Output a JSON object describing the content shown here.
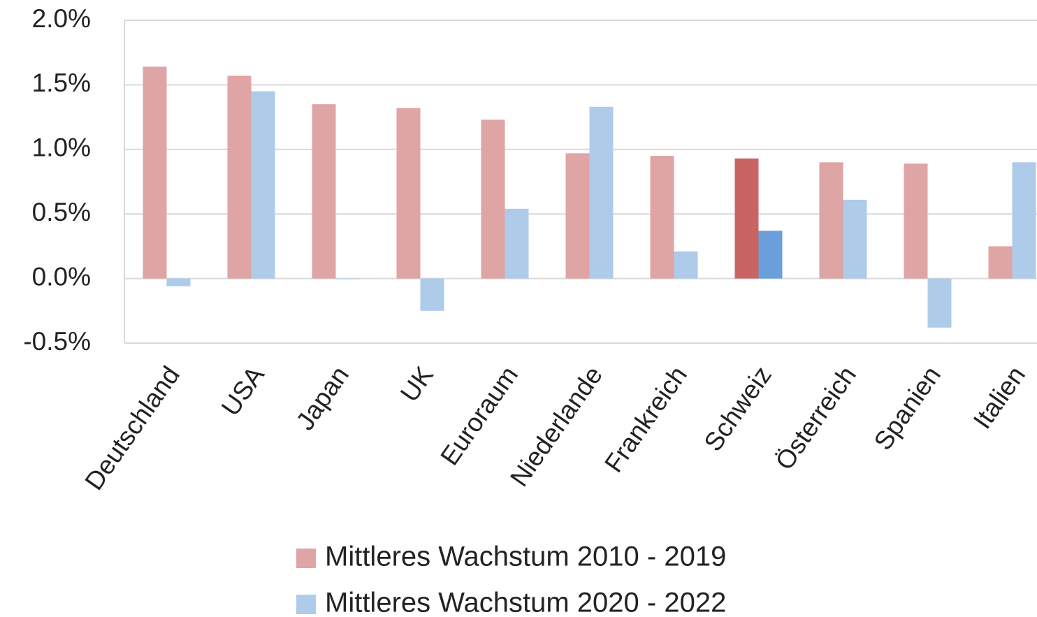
{
  "chart_data": {
    "type": "bar",
    "categories": [
      "Deutschland",
      "USA",
      "Japan",
      "UK",
      "Euroraum",
      "Niederlande",
      "Frankreich",
      "Schweiz",
      "Österreich",
      "Spanien",
      "Italien"
    ],
    "series": [
      {
        "name": "Mittleres Wachstum 2010 - 2019",
        "color": "#dfa5a5",
        "colors": [
          "#dfa5a5",
          "#dfa5a5",
          "#dfa5a5",
          "#dfa5a5",
          "#dfa5a5",
          "#dfa5a5",
          "#dfa5a5",
          "#c86563",
          "#dfa5a5",
          "#dfa5a5",
          "#dfa5a5"
        ],
        "values": [
          1.64,
          1.57,
          1.35,
          1.32,
          1.23,
          0.97,
          0.95,
          0.93,
          0.9,
          0.89,
          0.25
        ]
      },
      {
        "name": "Mittleres Wachstum 2020 - 2022",
        "color": "#aecbea",
        "colors": [
          "#aecbea",
          "#aecbea",
          "#aecbea",
          "#aecbea",
          "#aecbea",
          "#aecbea",
          "#aecbea",
          "#6b9fdc",
          "#aecbea",
          "#aecbea",
          "#aecbea"
        ],
        "values": [
          -0.06,
          1.45,
          0,
          -0.25,
          0.54,
          1.33,
          0.21,
          0.37,
          0.61,
          -0.38,
          0.9
        ]
      }
    ],
    "ylim": [
      -0.5,
      2.0
    ],
    "yticks": [
      {
        "value": -0.5,
        "label": "-0.5%"
      },
      {
        "value": 0,
        "label": "0.0%"
      },
      {
        "value": 0.5,
        "label": "0.5%"
      },
      {
        "value": 1.0,
        "label": "1.0%"
      },
      {
        "value": 1.5,
        "label": "1.5%"
      },
      {
        "value": 2.0,
        "label": "2.0%"
      }
    ],
    "grid": true,
    "legend": "bottom"
  }
}
